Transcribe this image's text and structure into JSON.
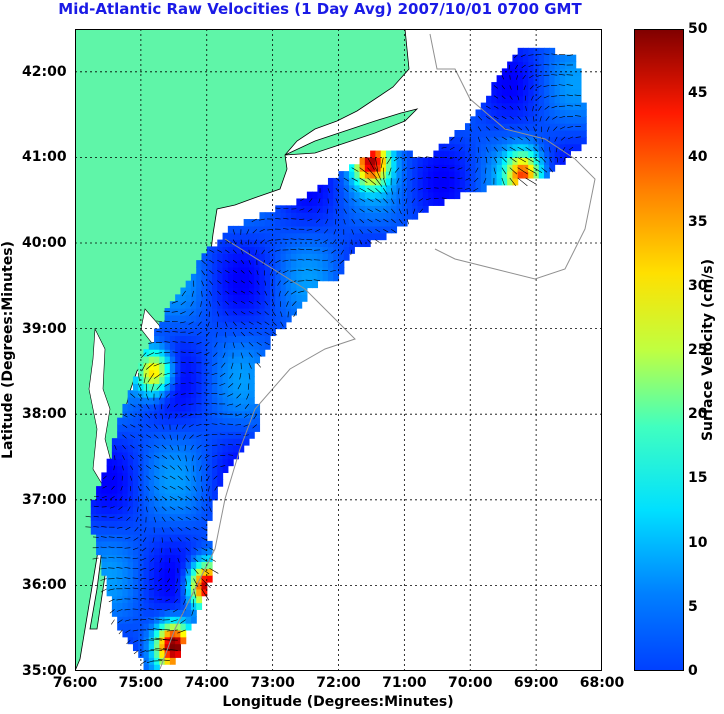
{
  "title": "Mid-Atlantic Raw Velocities (1 Day Avg) 2007/10/01 0700 GMT",
  "title_color": "#1a1ae6",
  "axes": {
    "xlabel": "Longitude (Degrees:Minutes)",
    "ylabel": "Latitude (Degrees:Minutes)",
    "x_ticks": [
      "76:00",
      "75:00",
      "74:00",
      "73:00",
      "72:00",
      "71:00",
      "70:00",
      "69:00",
      "68:00"
    ],
    "y_ticks": [
      "42:00",
      "41:00",
      "40:00",
      "39:00",
      "38:00",
      "37:00",
      "36:00",
      "35:00"
    ],
    "x_range": [
      -76,
      -68
    ],
    "y_range": [
      35,
      42.5
    ]
  },
  "colorbar": {
    "label": "Surface Velocity (cm/s)",
    "ticks": [
      "50",
      "45",
      "40",
      "35",
      "30",
      "25",
      "20",
      "15",
      "10",
      "5",
      "0"
    ],
    "range": [
      0,
      50
    ],
    "colormap": "jet"
  },
  "colors": {
    "land": "#5ff5a8",
    "ocean": "#ffffff",
    "coastline": "#000000",
    "bathymetry": "#909090",
    "grid": "#000000"
  },
  "chart_data": {
    "type": "heatmap",
    "description_fields": "surface current speed field with velocity vectors",
    "x_units": "degrees longitude",
    "y_units": "degrees latitude",
    "value_units": "cm/s",
    "hotspots": [
      {
        "lon": -74.5,
        "lat": 35.3,
        "speed": 50
      },
      {
        "lon": -74.0,
        "lat": 36.0,
        "speed": 48
      },
      {
        "lon": -71.5,
        "lat": 40.95,
        "speed": 45
      },
      {
        "lon": -69.2,
        "lat": 40.8,
        "speed": 38
      },
      {
        "lon": -74.8,
        "lat": 38.5,
        "speed": 35
      }
    ],
    "typical_speed": 10
  }
}
